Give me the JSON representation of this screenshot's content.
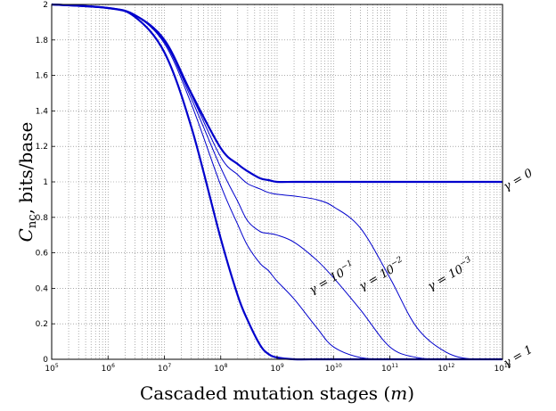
{
  "chart_data": {
    "type": "line",
    "xlabel": "Cascaded mutation stages (m)",
    "ylabel": "C_nc, bits/base",
    "xscale": "log",
    "xlim": [
      100000,
      10000000000000
    ],
    "ylim": [
      0,
      2
    ],
    "x_ticks": [
      "10^5",
      "10^6",
      "10^7",
      "10^8",
      "10^9",
      "10^10",
      "10^11",
      "10^12",
      "10^13"
    ],
    "y_ticks": [
      "0",
      "0.2",
      "0.4",
      "0.6",
      "0.8",
      "1",
      "1.2",
      "1.4",
      "1.6",
      "1.8",
      "2"
    ],
    "grid": true,
    "line_color": "#0000cc",
    "x": [
      100000.0,
      1000000.0,
      3000000.0,
      10000000.0,
      30000000.0,
      100000000.0,
      200000000.0,
      300000000.0,
      500000000.0,
      700000000.0,
      1000000000.0,
      2000000000.0,
      5000000000.0,
      10000000000.0,
      30000000000.0,
      100000000000.0,
      300000000000.0,
      1000000000000.0,
      3000000000000.0,
      10000000000000.0
    ],
    "series": [
      {
        "name": "γ = 1",
        "values": [
          2.0,
          1.98,
          1.93,
          1.73,
          1.31,
          0.68,
          0.36,
          0.22,
          0.08,
          0.03,
          0.01,
          0.0,
          0.0,
          0.0,
          0.0,
          0.0,
          0.0,
          0.0,
          0.0,
          0.0
        ]
      },
      {
        "name": "γ = 10^-1",
        "values": [
          2.0,
          1.98,
          1.94,
          1.78,
          1.44,
          0.98,
          0.76,
          0.64,
          0.54,
          0.5,
          0.44,
          0.34,
          0.18,
          0.07,
          0.01,
          0.0,
          0.0,
          0.0,
          0.0,
          0.0
        ]
      },
      {
        "name": "γ = 10^-2",
        "values": [
          2.0,
          1.98,
          1.94,
          1.79,
          1.47,
          1.08,
          0.89,
          0.78,
          0.72,
          0.71,
          0.7,
          0.66,
          0.56,
          0.46,
          0.28,
          0.07,
          0.01,
          0.0,
          0.0,
          0.0
        ]
      },
      {
        "name": "γ = 10^-3",
        "values": [
          2.0,
          1.98,
          1.94,
          1.79,
          1.49,
          1.14,
          1.04,
          0.99,
          0.96,
          0.94,
          0.93,
          0.92,
          0.9,
          0.86,
          0.74,
          0.46,
          0.18,
          0.04,
          0.0,
          0.0
        ]
      },
      {
        "name": "γ = 0",
        "values": [
          2.0,
          1.98,
          1.94,
          1.8,
          1.5,
          1.19,
          1.1,
          1.06,
          1.02,
          1.01,
          1.0,
          1.0,
          1.0,
          1.0,
          1.0,
          1.0,
          1.0,
          1.0,
          1.0,
          1.0
        ]
      }
    ],
    "curve_labels": [
      "γ = 0",
      "γ = 10^-1",
      "γ = 10^-2",
      "γ = 10^-3",
      "γ = 1"
    ]
  }
}
